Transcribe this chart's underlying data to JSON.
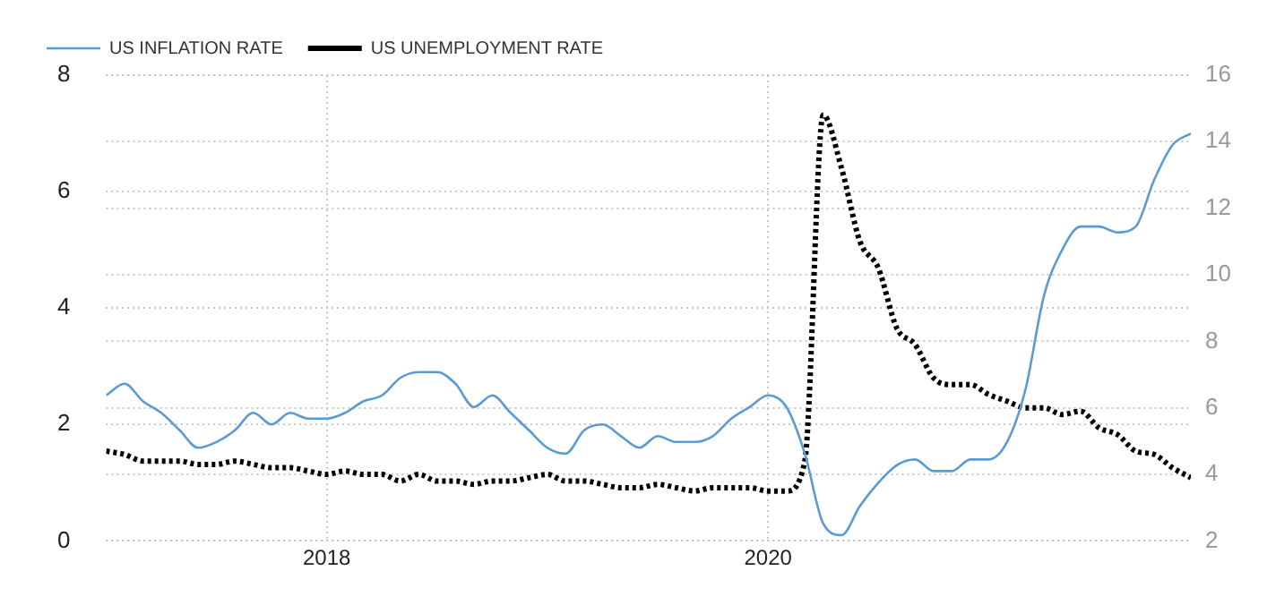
{
  "chart_data": {
    "type": "line",
    "x": [
      "2017-01",
      "2017-02",
      "2017-03",
      "2017-04",
      "2017-05",
      "2017-06",
      "2017-07",
      "2017-08",
      "2017-09",
      "2017-10",
      "2017-11",
      "2017-12",
      "2018-01",
      "2018-02",
      "2018-03",
      "2018-04",
      "2018-05",
      "2018-06",
      "2018-07",
      "2018-08",
      "2018-09",
      "2018-10",
      "2018-11",
      "2018-12",
      "2019-01",
      "2019-02",
      "2019-03",
      "2019-04",
      "2019-05",
      "2019-06",
      "2019-07",
      "2019-08",
      "2019-09",
      "2019-10",
      "2019-11",
      "2019-12",
      "2020-01",
      "2020-02",
      "2020-03",
      "2020-04",
      "2020-05",
      "2020-06",
      "2020-07",
      "2020-08",
      "2020-09",
      "2020-10",
      "2020-11",
      "2020-12",
      "2021-01",
      "2021-02",
      "2021-03",
      "2021-04",
      "2021-05",
      "2021-06",
      "2021-07",
      "2021-08",
      "2021-09",
      "2021-10",
      "2021-11",
      "2021-12"
    ],
    "series": [
      {
        "name": "US INFLATION RATE",
        "color": "#5b9bd5",
        "line_style": "solid",
        "values": [
          2.5,
          2.7,
          2.4,
          2.2,
          1.9,
          1.6,
          1.7,
          1.9,
          2.2,
          2.0,
          2.2,
          2.1,
          2.1,
          2.2,
          2.4,
          2.5,
          2.8,
          2.9,
          2.9,
          2.7,
          2.3,
          2.5,
          2.2,
          1.9,
          1.6,
          1.5,
          1.9,
          2.0,
          1.8,
          1.6,
          1.8,
          1.7,
          1.7,
          1.8,
          2.1,
          2.3,
          2.5,
          2.3,
          1.5,
          0.3,
          0.1,
          0.6,
          1.0,
          1.3,
          1.4,
          1.2,
          1.2,
          1.4,
          1.4,
          1.7,
          2.6,
          4.2,
          5.0,
          5.4,
          5.4,
          5.3,
          5.4,
          6.2,
          6.8,
          7.0
        ]
      },
      {
        "name": "US UNEMPLOYMENT RATE",
        "color": "#000000",
        "line_style": "dotted",
        "axis": "y2",
        "values": [
          4.7,
          4.6,
          4.4,
          4.4,
          4.4,
          4.3,
          4.3,
          4.4,
          4.3,
          4.2,
          4.2,
          4.1,
          4.0,
          4.1,
          4.0,
          4.0,
          3.8,
          4.0,
          3.8,
          3.8,
          3.7,
          3.8,
          3.8,
          3.9,
          4.0,
          3.8,
          3.8,
          3.7,
          3.6,
          3.6,
          3.7,
          3.6,
          3.5,
          3.6,
          3.6,
          3.6,
          3.5,
          3.5,
          4.4,
          14.8,
          13.2,
          11.0,
          10.2,
          8.4,
          7.9,
          6.9,
          6.7,
          6.7,
          6.4,
          6.2,
          6.0,
          6.0,
          5.8,
          5.9,
          5.4,
          5.2,
          4.7,
          4.6,
          4.2,
          3.9
        ]
      }
    ],
    "xlim": [
      "2017-01",
      "2021-12"
    ],
    "xticks": [
      {
        "value": "2018-01",
        "label": "2018"
      },
      {
        "value": "2020-01",
        "label": "2020"
      }
    ],
    "ylim": [
      0,
      8
    ],
    "yticks": [
      0,
      2,
      4,
      6,
      8
    ],
    "y2lim": [
      2,
      16
    ],
    "y2ticks": [
      2,
      4,
      6,
      8,
      10,
      12,
      14,
      16
    ],
    "grid": true,
    "legend": "top left",
    "marker": "none"
  }
}
